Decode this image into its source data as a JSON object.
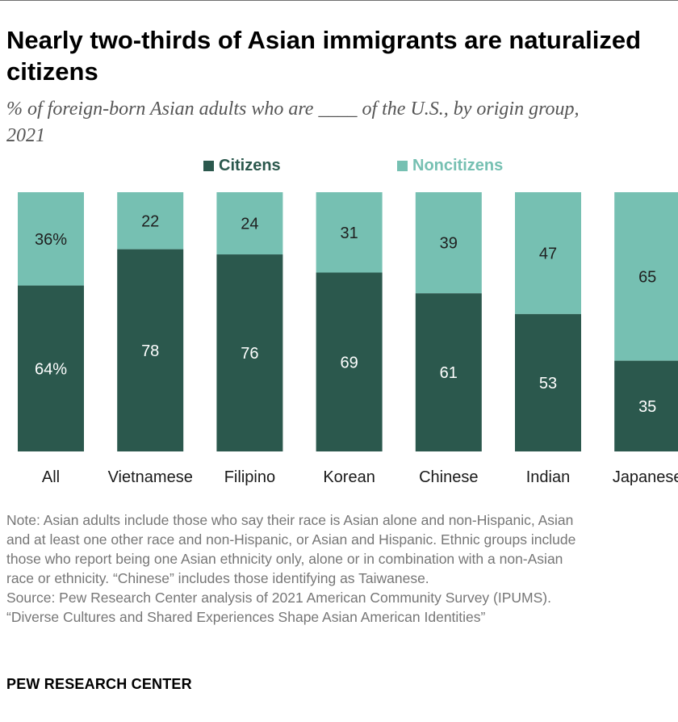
{
  "title_lines": [
    "Nearly two-thirds of Asian immigrants are naturalized",
    "citizens"
  ],
  "subtitle_lines": [
    "% of foreign-born Asian adults who are ____ of the U.S., by origin group,",
    "2021"
  ],
  "legend": [
    {
      "label": "Citizens",
      "color": "#2b584d"
    },
    {
      "label": "Noncitizens",
      "color": "#76c0b2"
    }
  ],
  "chart_data": {
    "type": "bar",
    "stacked": true,
    "orientation": "vertical",
    "categories": [
      "All",
      "Vietnamese",
      "Filipino",
      "Korean",
      "Chinese",
      "Indian",
      "Japanese"
    ],
    "series": [
      {
        "name": "Citizens",
        "values": [
          64,
          78,
          76,
          69,
          61,
          53,
          35
        ],
        "color": "#2b584d",
        "labels": [
          "64%",
          "78",
          "76",
          "69",
          "61",
          "53",
          "35"
        ]
      },
      {
        "name": "Noncitizens",
        "values": [
          36,
          22,
          24,
          31,
          39,
          47,
          65
        ],
        "color": "#76c0b2",
        "labels": [
          "36%",
          "22",
          "24",
          "31",
          "39",
          "47",
          "65"
        ]
      }
    ],
    "ylim": [
      0,
      100
    ]
  },
  "notes": [
    "Note: Asian adults include those who say their race is Asian alone and non-Hispanic, Asian",
    "and at least one other race and non-Hispanic, or Asian and Hispanic. Ethnic groups include",
    "those who report being one Asian ethnicity only, alone or in combination with a non-Asian",
    "race or ethnicity. “Chinese” includes those identifying as Taiwanese.",
    "Source: Pew Research Center analysis of 2021 American Community Survey (IPUMS).",
    "“Diverse Cultures and Shared Experiences Shape Asian American Identities”"
  ],
  "brand": "PEW RESEARCH CENTER"
}
